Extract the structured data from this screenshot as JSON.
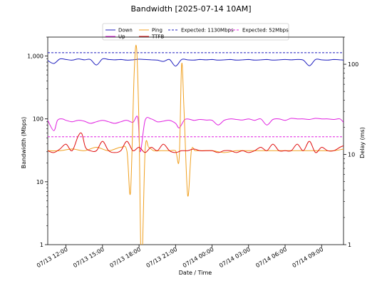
{
  "chart_data": {
    "type": "line",
    "title": "Bandwidth [2025-07-14 10AM]",
    "xlabel": "Date / Time",
    "ylabel_left": "Bandwidth (Mbps)",
    "ylabel_right": "Delay (ms)",
    "left_scale": "log",
    "right_scale": "log",
    "ylim_left": [
      1,
      2000
    ],
    "ylim_right": [
      1,
      200
    ],
    "x_tick_labels": [
      "07/13 12:00",
      "07/13 15:00",
      "07/13 18:00",
      "07/13 21:00",
      "07/14 00:00",
      "07/14 03:00",
      "07/14 06:00",
      "07/14 09:00"
    ],
    "x_range_hours": [
      10.5,
      34.8
    ],
    "y_left_ticks": [
      {
        "v": 1,
        "label": "1"
      },
      {
        "v": 10,
        "label": "10"
      },
      {
        "v": 100,
        "label": "100"
      },
      {
        "v": 1000,
        "label": "1,000"
      }
    ],
    "y_right_ticks": [
      {
        "v": 1,
        "label": "1"
      },
      {
        "v": 10,
        "label": "10"
      },
      {
        "v": 100,
        "label": "100"
      }
    ],
    "legend_placement": "top-center",
    "grid": false,
    "colors": {
      "down": "#1f1fbf",
      "up": "#e020e0",
      "ping": "#f0a020",
      "ttfb": "#e01010"
    },
    "series": [
      {
        "name": "Down",
        "axis": "left",
        "color": "#1f1fbf",
        "style": "solid",
        "x": [
          10.5,
          11.0,
          11.5,
          12.0,
          12.5,
          13.0,
          13.5,
          14.0,
          14.5,
          15.0,
          15.5,
          16.0,
          16.5,
          17.0,
          17.5,
          18.0,
          18.5,
          19.0,
          19.5,
          20.0,
          20.5,
          21.0,
          21.5,
          22.0,
          22.5,
          23.0,
          23.5,
          24.0,
          24.5,
          25.0,
          25.5,
          26.0,
          26.5,
          27.0,
          27.5,
          28.0,
          28.5,
          29.0,
          29.5,
          30.0,
          30.5,
          31.0,
          31.5,
          32.0,
          32.5,
          33.0,
          33.5,
          34.0,
          34.5,
          34.8
        ],
        "y": [
          850,
          760,
          900,
          880,
          860,
          900,
          870,
          880,
          720,
          900,
          880,
          870,
          880,
          860,
          870,
          890,
          880,
          870,
          860,
          820,
          880,
          690,
          880,
          870,
          860,
          880,
          870,
          880,
          860,
          870,
          880,
          860,
          870,
          880,
          860,
          870,
          880,
          860,
          870,
          880,
          870,
          880,
          860,
          700,
          880,
          870,
          860,
          880,
          870,
          860
        ]
      },
      {
        "name": "Up",
        "axis": "left",
        "color": "#e020e0",
        "style": "solid",
        "x": [
          10.5,
          11.0,
          11.3,
          11.7,
          12.0,
          12.5,
          13.0,
          13.5,
          14.0,
          14.5,
          15.0,
          15.5,
          16.0,
          16.5,
          17.0,
          17.5,
          17.9,
          18.1,
          18.5,
          19.0,
          19.5,
          20.0,
          20.5,
          21.0,
          21.3,
          21.7,
          22.0,
          22.5,
          23.0,
          23.5,
          24.0,
          24.5,
          25.0,
          25.5,
          26.0,
          26.5,
          27.0,
          27.5,
          28.0,
          28.5,
          29.0,
          29.5,
          30.0,
          30.5,
          31.0,
          31.5,
          32.0,
          32.5,
          33.0,
          33.5,
          34.0,
          34.5,
          34.8
        ],
        "y": [
          95,
          65,
          95,
          100,
          95,
          90,
          95,
          92,
          85,
          90,
          95,
          90,
          85,
          90,
          95,
          88,
          105,
          30,
          95,
          100,
          90,
          92,
          95,
          85,
          72,
          95,
          100,
          95,
          98,
          96,
          95,
          80,
          95,
          100,
          98,
          96,
          100,
          95,
          100,
          80,
          98,
          100,
          95,
          102,
          100,
          100,
          98,
          102,
          100,
          100,
          98,
          100,
          88
        ]
      },
      {
        "name": "Expected: 1130Mbps",
        "axis": "left",
        "color": "#1f1fbf",
        "style": "dashed",
        "x": [
          10.5,
          34.8
        ],
        "y": [
          1130,
          1130
        ]
      },
      {
        "name": "Expected: 52Mbps",
        "axis": "left",
        "color": "#e020e0",
        "style": "dashed",
        "x": [
          10.5,
          34.8
        ],
        "y": [
          52,
          52
        ]
      },
      {
        "name": "Ping",
        "axis": "right",
        "color": "#f0a020",
        "style": "solid",
        "x": [
          10.5,
          11.5,
          12.5,
          13.5,
          14.5,
          15.5,
          16.5,
          17.0,
          17.3,
          17.6,
          17.8,
          18.0,
          18.2,
          18.5,
          18.8,
          19.2,
          19.8,
          20.5,
          21.0,
          21.3,
          21.5,
          21.7,
          22.0,
          22.3,
          22.6,
          23.0,
          24.0,
          25.0,
          26.0,
          27.0,
          28.0,
          29.0,
          30.0,
          31.0,
          32.0,
          33.0,
          34.0,
          34.8
        ],
        "y": [
          11,
          11,
          11.5,
          11,
          12,
          11,
          12,
          11,
          3.8,
          80,
          150,
          20,
          0.5,
          11,
          12,
          11,
          11,
          11,
          11,
          9,
          100,
          30,
          3.5,
          11,
          11,
          11,
          11,
          10.5,
          11,
          11,
          11,
          11,
          11,
          11,
          11,
          11,
          11,
          11.5
        ]
      },
      {
        "name": "TTFB",
        "axis": "right",
        "color": "#e01010",
        "style": "solid",
        "x": [
          10.5,
          11.0,
          11.5,
          12.0,
          12.5,
          13.0,
          13.3,
          13.6,
          14.0,
          14.5,
          15.0,
          15.5,
          16.0,
          16.5,
          17.0,
          17.5,
          18.0,
          18.5,
          19.0,
          19.5,
          20.0,
          20.5,
          21.0,
          21.5,
          22.0,
          22.5,
          23.0,
          23.5,
          24.0,
          24.5,
          25.0,
          25.5,
          26.0,
          26.5,
          27.0,
          27.5,
          28.0,
          28.5,
          29.0,
          29.5,
          30.0,
          30.5,
          31.0,
          31.5,
          32.0,
          32.5,
          33.0,
          33.5,
          34.0,
          34.5,
          34.8
        ],
        "y": [
          11,
          10.5,
          11.5,
          13,
          11,
          16,
          17,
          12,
          11,
          11,
          14,
          11,
          10.5,
          11,
          14,
          11,
          12,
          10.5,
          12,
          11,
          13,
          11,
          10.5,
          11,
          11,
          11.5,
          11,
          11,
          11,
          10.5,
          11,
          11,
          10.5,
          11,
          10.5,
          11,
          12,
          11,
          13,
          11,
          11,
          11,
          13,
          11,
          14,
          10.5,
          12,
          11,
          11,
          12,
          12.5
        ]
      }
    ]
  },
  "legend": [
    {
      "label": "Down",
      "color": "#1f1fbf",
      "style": "solid"
    },
    {
      "label": "Up",
      "color": "#e020e0",
      "style": "solid"
    },
    {
      "label": "Ping",
      "color": "#f0a020",
      "style": "solid"
    },
    {
      "label": "TTFB",
      "color": "#e01010",
      "style": "solid"
    },
    {
      "label": "Expected: 1130Mbps",
      "color": "#1f1fbf",
      "style": "dashed"
    },
    {
      "label": "Expected: 52Mbps",
      "color": "#e020e0",
      "style": "dashed"
    }
  ]
}
